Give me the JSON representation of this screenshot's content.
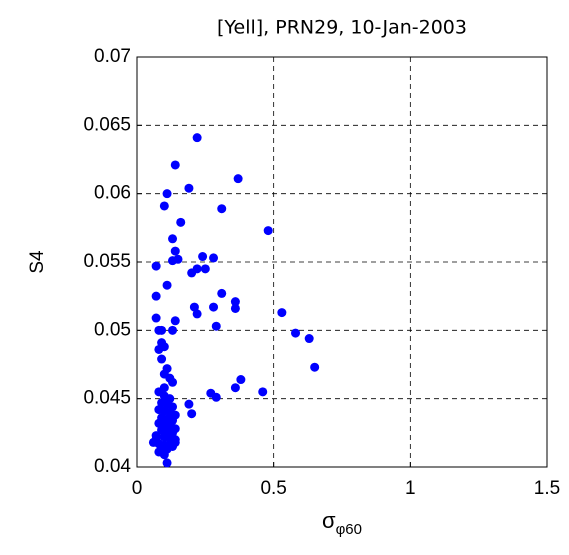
{
  "chart_data": {
    "type": "scatter",
    "title": "[Yell], PRN29, 10-Jan-2003",
    "ylabel": "S4",
    "xlabel": {
      "main": "σ",
      "sub": "φ60"
    },
    "xlim": [
      0,
      1.5
    ],
    "ylim": [
      0.04,
      0.07
    ],
    "xticks": [
      0,
      0.5,
      1,
      1.5
    ],
    "yticks": [
      0.04,
      0.045,
      0.05,
      0.055,
      0.06,
      0.065,
      0.07
    ],
    "grid": true,
    "color": "#0000ff",
    "x": [
      0.22,
      0.14,
      0.37,
      0.19,
      0.11,
      0.1,
      0.31,
      0.16,
      0.48,
      0.13,
      0.14,
      0.13,
      0.15,
      0.24,
      0.28,
      0.22,
      0.25,
      0.2,
      0.07,
      0.11,
      0.07,
      0.31,
      0.36,
      0.21,
      0.28,
      0.36,
      0.53,
      0.22,
      0.14,
      0.07,
      0.29,
      0.58,
      0.63,
      0.08,
      0.09,
      0.13,
      0.09,
      0.08,
      0.1,
      0.09,
      0.65,
      0.11,
      0.1,
      0.12,
      0.38,
      0.36,
      0.46,
      0.27,
      0.29,
      0.19,
      0.2,
      0.13,
      0.1,
      0.08,
      0.1,
      0.12,
      0.09,
      0.11,
      0.13,
      0.08,
      0.1,
      0.12,
      0.14,
      0.09,
      0.11,
      0.13,
      0.08,
      0.1,
      0.12,
      0.14,
      0.09,
      0.11,
      0.13,
      0.07,
      0.1,
      0.12,
      0.14,
      0.06,
      0.08,
      0.1,
      0.12,
      0.14,
      0.09,
      0.11,
      0.08,
      0.1,
      0.11,
      0.13,
      0.07,
      0.12,
      0.11
    ],
    "values": [
      0.0641,
      0.0621,
      0.0611,
      0.0604,
      0.06,
      0.0591,
      0.0589,
      0.0579,
      0.0573,
      0.0567,
      0.0558,
      0.0551,
      0.0552,
      0.0554,
      0.0553,
      0.0545,
      0.0545,
      0.0542,
      0.0547,
      0.0533,
      0.0525,
      0.0527,
      0.0521,
      0.0517,
      0.0517,
      0.0516,
      0.0513,
      0.0512,
      0.0507,
      0.0509,
      0.0503,
      0.0498,
      0.0494,
      0.05,
      0.05,
      0.05,
      0.0491,
      0.0486,
      0.0488,
      0.0479,
      0.0473,
      0.0472,
      0.0468,
      0.0465,
      0.0464,
      0.0458,
      0.0455,
      0.0454,
      0.0451,
      0.0446,
      0.0439,
      0.0462,
      0.0458,
      0.0455,
      0.0452,
      0.045,
      0.0447,
      0.0446,
      0.0444,
      0.0442,
      0.0441,
      0.044,
      0.0438,
      0.0436,
      0.0435,
      0.0434,
      0.0432,
      0.0431,
      0.043,
      0.0428,
      0.0427,
      0.0426,
      0.0425,
      0.0423,
      0.0422,
      0.0421,
      0.042,
      0.0418,
      0.0417,
      0.0416,
      0.0417,
      0.0418,
      0.0414,
      0.0413,
      0.0411,
      0.0409,
      0.0403,
      0.0415,
      0.042,
      0.0435,
      0.0448
    ]
  }
}
